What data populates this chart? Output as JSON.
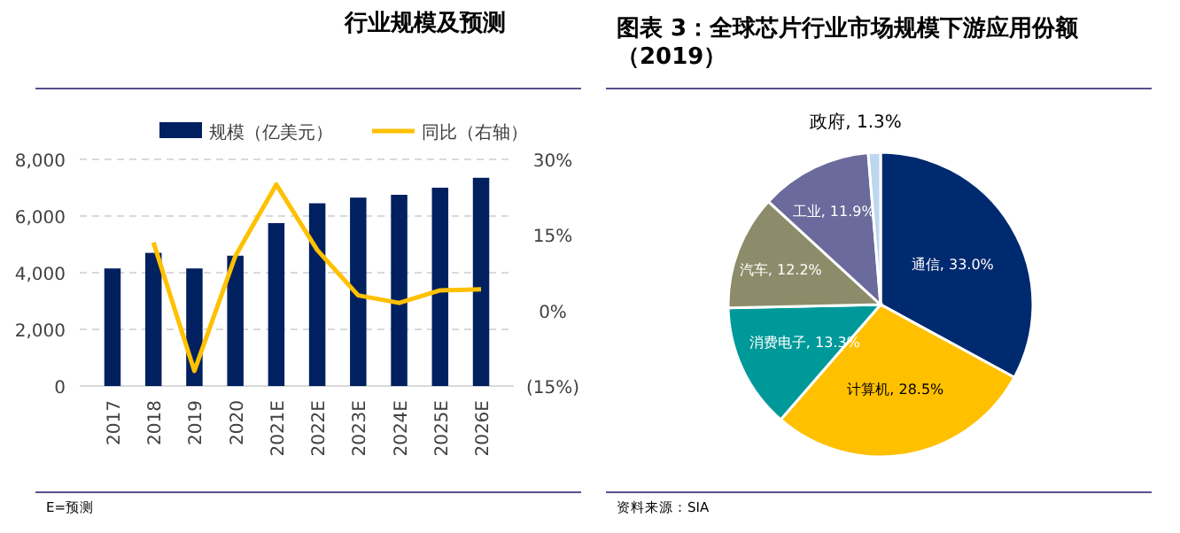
{
  "chart_data": [
    {
      "type": "bar",
      "title": "行业规模及预测",
      "categories": [
        "2017",
        "2018",
        "2019",
        "2020",
        "2021E",
        "2022E",
        "2023E",
        "2024E",
        "2025E",
        "2026E"
      ],
      "series": [
        {
          "name": "规模（亿美元）",
          "type": "bar",
          "color": "#002060",
          "values": [
            4150,
            4700,
            4150,
            4600,
            5750,
            6450,
            6650,
            6750,
            7000,
            7350
          ]
        },
        {
          "name": "同比（右轴）",
          "type": "line",
          "axis": "y2",
          "color": "#ffc000",
          "values": [
            null,
            13.5,
            -12,
            10.8,
            25,
            12,
            3,
            1.5,
            4,
            4.2
          ]
        }
      ],
      "ylim": [
        0,
        8000
      ],
      "yticks": [
        0,
        {
          "value": 2000,
          "label": "2,000"
        },
        {
          "value": 4000,
          "label": "4,000"
        },
        {
          "value": 6000,
          "label": "6,000"
        },
        {
          "value": 8000,
          "label": "8,000"
        }
      ],
      "y2lim": [
        -15,
        30
      ],
      "y2ticks": [
        {
          "value": -15,
          "label": "(15%)"
        },
        {
          "value": 0,
          "label": "0%"
        },
        {
          "value": 15,
          "label": "15%"
        },
        {
          "value": 30,
          "label": "30%"
        }
      ],
      "grid": "y",
      "legend": "top",
      "marker": "none",
      "annotations": [
        "E=预测"
      ]
    },
    {
      "type": "pie",
      "title": "图表 3：全球芯片行业市场规模下游应用份额（2019）",
      "categories": [
        "通信",
        "计算机",
        "消费电子",
        "汽车",
        "工业",
        "政府"
      ],
      "values": [
        33.0,
        28.5,
        13.3,
        12.2,
        11.9,
        1.3
      ],
      "colors": [
        "#002a70",
        "#ffc000",
        "#00999a",
        "#8c8c6a",
        "#6a6a9c",
        "#bdd7ee"
      ],
      "value_labels": [
        "33.0%",
        "28.5%",
        "13.3%",
        "12.2%",
        "11.9%",
        "1.3%"
      ],
      "annotations": [
        "资料来源：SIA"
      ]
    }
  ]
}
